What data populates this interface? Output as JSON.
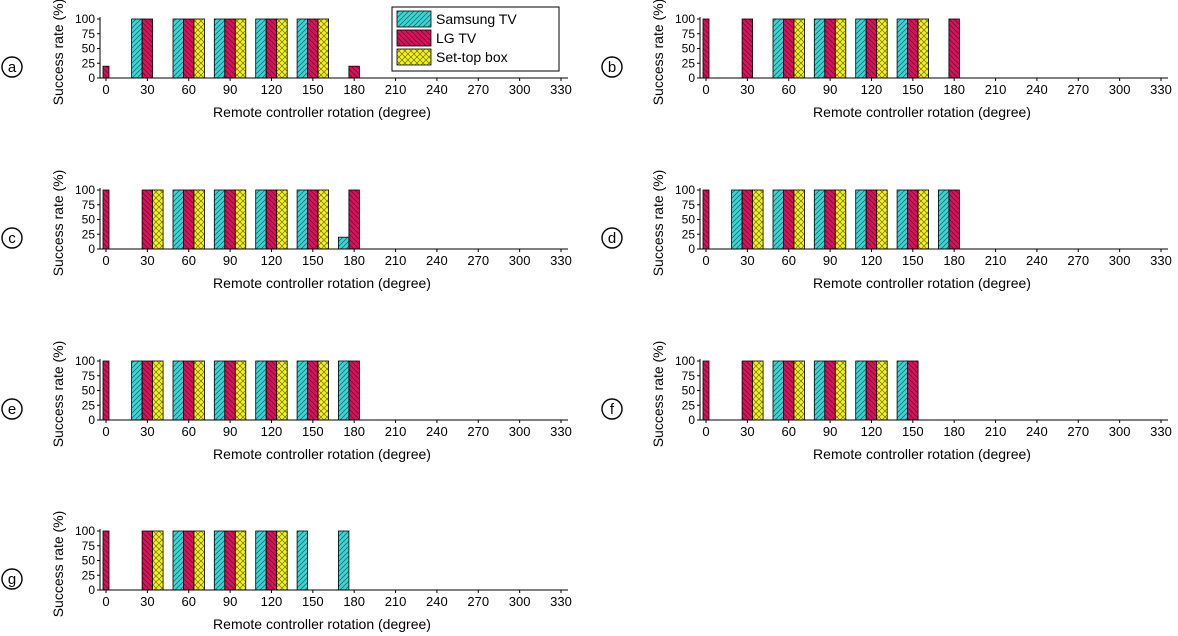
{
  "figure": {
    "xlabel": "Remote controller rotation (degree)",
    "ylabel": "Success rate (%)",
    "legend": [
      "Samsung TV",
      "LG TV",
      "Set-top box"
    ],
    "colors": {
      "samsung": "#3ad6d6",
      "lg": "#d6125a",
      "settop": "#f2f21a"
    }
  },
  "chart_data": [
    {
      "panel": "a",
      "type": "bar",
      "xticks": [
        0,
        30,
        60,
        90,
        120,
        150,
        180,
        210,
        240,
        270,
        300,
        330
      ],
      "yticks": [
        0,
        25,
        50,
        75,
        100
      ],
      "ylim": [
        0,
        100
      ],
      "legend_position": "top-right",
      "series": [
        {
          "name": "Samsung TV",
          "x": [
            30,
            60,
            90,
            120,
            150
          ],
          "values": [
            100,
            100,
            100,
            100,
            100
          ]
        },
        {
          "name": "LG TV",
          "x": [
            0,
            30,
            60,
            90,
            120,
            150,
            180
          ],
          "values": [
            20,
            100,
            100,
            100,
            100,
            100,
            20
          ]
        },
        {
          "name": "Set-top box",
          "x": [
            60,
            90,
            120,
            150
          ],
          "values": [
            100,
            100,
            100,
            100
          ]
        }
      ]
    },
    {
      "panel": "b",
      "type": "bar",
      "xticks": [
        0,
        30,
        60,
        90,
        120,
        150,
        180,
        210,
        240,
        270,
        300,
        330
      ],
      "yticks": [
        0,
        25,
        50,
        75,
        100
      ],
      "ylim": [
        0,
        100
      ],
      "series": [
        {
          "name": "Samsung TV",
          "x": [
            60,
            90,
            120,
            150
          ],
          "values": [
            100,
            100,
            100,
            100
          ]
        },
        {
          "name": "LG TV",
          "x": [
            0,
            30,
            60,
            90,
            120,
            150,
            180
          ],
          "values": [
            100,
            100,
            100,
            100,
            100,
            100,
            100
          ]
        },
        {
          "name": "Set-top box",
          "x": [
            60,
            90,
            120,
            150
          ],
          "values": [
            100,
            100,
            100,
            100
          ]
        }
      ]
    },
    {
      "panel": "c",
      "type": "bar",
      "xticks": [
        0,
        30,
        60,
        90,
        120,
        150,
        180,
        210,
        240,
        270,
        300,
        330
      ],
      "yticks": [
        0,
        25,
        50,
        75,
        100
      ],
      "ylim": [
        0,
        100
      ],
      "series": [
        {
          "name": "Samsung TV",
          "x": [
            60,
            90,
            120,
            150,
            180
          ],
          "values": [
            100,
            100,
            100,
            100,
            20
          ]
        },
        {
          "name": "LG TV",
          "x": [
            0,
            30,
            60,
            90,
            120,
            150,
            180
          ],
          "values": [
            100,
            100,
            100,
            100,
            100,
            100,
            100
          ]
        },
        {
          "name": "Set-top box",
          "x": [
            30,
            60,
            90,
            120,
            150
          ],
          "values": [
            100,
            100,
            100,
            100,
            100
          ]
        }
      ]
    },
    {
      "panel": "d",
      "type": "bar",
      "xticks": [
        0,
        30,
        60,
        90,
        120,
        150,
        180,
        210,
        240,
        270,
        300,
        330
      ],
      "yticks": [
        0,
        25,
        50,
        75,
        100
      ],
      "ylim": [
        0,
        100
      ],
      "series": [
        {
          "name": "Samsung TV",
          "x": [
            30,
            60,
            90,
            120,
            150,
            180
          ],
          "values": [
            100,
            100,
            100,
            100,
            100,
            100
          ]
        },
        {
          "name": "LG TV",
          "x": [
            0,
            30,
            60,
            90,
            120,
            150,
            180
          ],
          "values": [
            100,
            100,
            100,
            100,
            100,
            100,
            100
          ]
        },
        {
          "name": "Set-top box",
          "x": [
            30,
            60,
            90,
            120,
            150
          ],
          "values": [
            100,
            100,
            100,
            100,
            100
          ]
        }
      ]
    },
    {
      "panel": "e",
      "type": "bar",
      "xticks": [
        0,
        30,
        60,
        90,
        120,
        150,
        180,
        210,
        240,
        270,
        300,
        330
      ],
      "yticks": [
        0,
        25,
        50,
        75,
        100
      ],
      "ylim": [
        0,
        100
      ],
      "series": [
        {
          "name": "Samsung TV",
          "x": [
            30,
            60,
            90,
            120,
            150,
            180
          ],
          "values": [
            100,
            100,
            100,
            100,
            100,
            100
          ]
        },
        {
          "name": "LG TV",
          "x": [
            0,
            30,
            60,
            90,
            120,
            150,
            180
          ],
          "values": [
            100,
            100,
            100,
            100,
            100,
            100,
            100
          ]
        },
        {
          "name": "Set-top box",
          "x": [
            30,
            60,
            90,
            120,
            150
          ],
          "values": [
            100,
            100,
            100,
            100,
            100
          ]
        }
      ]
    },
    {
      "panel": "f",
      "type": "bar",
      "xticks": [
        0,
        30,
        60,
        90,
        120,
        150,
        180,
        210,
        240,
        270,
        300,
        330
      ],
      "yticks": [
        0,
        25,
        50,
        75,
        100
      ],
      "ylim": [
        0,
        100
      ],
      "series": [
        {
          "name": "Samsung TV",
          "x": [
            60,
            90,
            120,
            150
          ],
          "values": [
            100,
            100,
            100,
            100
          ]
        },
        {
          "name": "LG TV",
          "x": [
            0,
            30,
            60,
            90,
            120,
            150
          ],
          "values": [
            100,
            100,
            100,
            100,
            100,
            100
          ]
        },
        {
          "name": "Set-top box",
          "x": [
            30,
            60,
            90,
            120
          ],
          "values": [
            100,
            100,
            100,
            100
          ]
        }
      ]
    },
    {
      "panel": "g",
      "type": "bar",
      "xticks": [
        0,
        30,
        60,
        90,
        120,
        150,
        180,
        210,
        240,
        270,
        300,
        330
      ],
      "yticks": [
        0,
        25,
        50,
        75,
        100
      ],
      "ylim": [
        0,
        100
      ],
      "series": [
        {
          "name": "Samsung TV",
          "x": [
            60,
            90,
            120,
            150,
            180
          ],
          "values": [
            100,
            100,
            100,
            100,
            100
          ]
        },
        {
          "name": "LG TV",
          "x": [
            0,
            30,
            60,
            90,
            120
          ],
          "values": [
            100,
            100,
            100,
            100,
            100
          ]
        },
        {
          "name": "Set-top box",
          "x": [
            30,
            60,
            90,
            120
          ],
          "values": [
            100,
            100,
            100,
            100
          ]
        }
      ]
    }
  ]
}
